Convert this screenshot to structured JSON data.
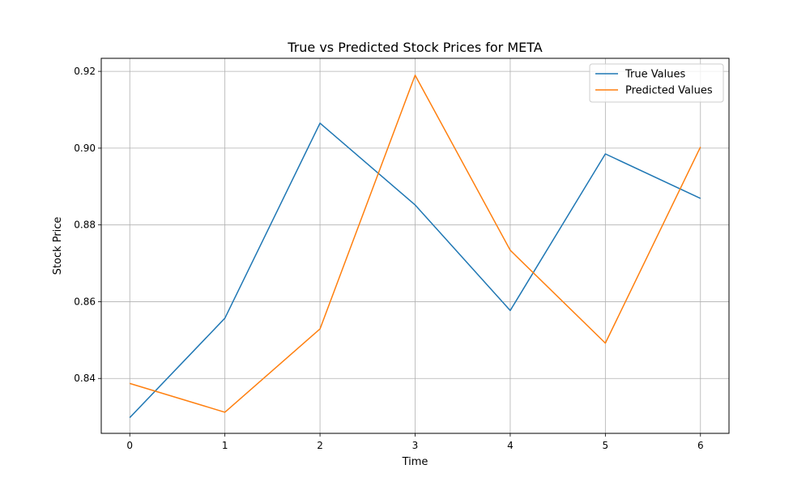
{
  "chart_data": {
    "type": "line",
    "title": "True vs Predicted Stock Prices for META",
    "xlabel": "Time",
    "ylabel": "Stock Price",
    "x": [
      0,
      1,
      2,
      3,
      4,
      5,
      6
    ],
    "xticks": [
      0,
      1,
      2,
      3,
      4,
      5,
      6
    ],
    "yticks": [
      0.84,
      0.86,
      0.88,
      0.9,
      0.92
    ],
    "ytick_labels": [
      "0.84",
      "0.86",
      "0.88",
      "0.90",
      "0.92"
    ],
    "xlim": [
      -0.3,
      6.3
    ],
    "ylim": [
      0.8257,
      0.9234
    ],
    "grid": true,
    "legend_position": "top-right",
    "series": [
      {
        "name": "True Values",
        "color": "#1f77b4",
        "values": [
          0.8298,
          0.8557,
          0.9065,
          0.8852,
          0.8577,
          0.8985,
          0.8869
        ]
      },
      {
        "name": "Predicted Values",
        "color": "#ff7f0e",
        "values": [
          0.8387,
          0.8312,
          0.8529,
          0.919,
          0.8734,
          0.8492,
          0.9003
        ]
      }
    ]
  }
}
